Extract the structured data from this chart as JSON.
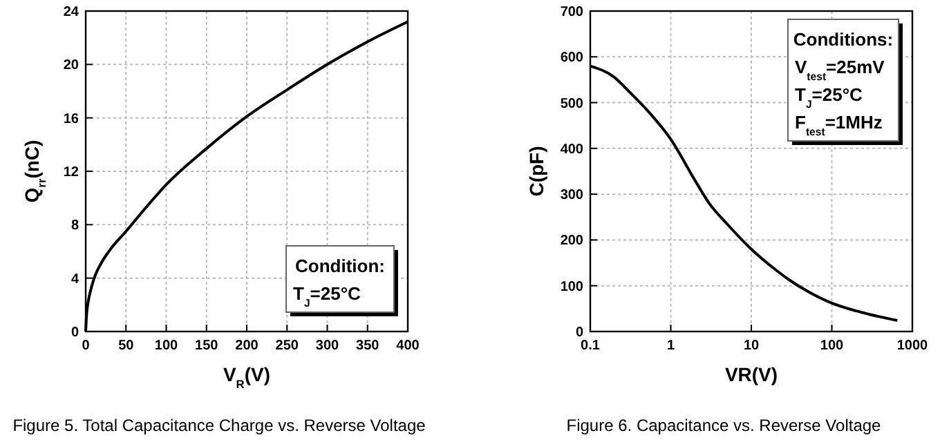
{
  "chart_data": [
    {
      "type": "line",
      "title": "Figure 5. Total Capacitance Charge vs. Reverse Voltage",
      "xlabel": "V$_{R}$(V)",
      "ylabel": "Q$_{rr}$(nC)",
      "annotations": [
        "Condition:",
        "T$_{J}$=25°C"
      ],
      "x": [
        0,
        1,
        3,
        5,
        10,
        20,
        30,
        50,
        75,
        100,
        150,
        200,
        250,
        300,
        350,
        400
      ],
      "series": [
        {
          "color": "#000000",
          "values": [
            0,
            1.2,
            2.2,
            2.8,
            3.9,
            5.2,
            6.1,
            7.5,
            9.3,
            11,
            13.7,
            16.1,
            18.1,
            20,
            21.7,
            23.2
          ]
        }
      ],
      "xlim": [
        0,
        400
      ],
      "xticks": [
        0,
        50,
        100,
        150,
        200,
        250,
        300,
        350,
        400
      ],
      "ylim": [
        0,
        24
      ],
      "yticks": [
        0,
        4,
        8,
        12,
        16,
        20,
        24
      ],
      "grid": true
    },
    {
      "type": "line",
      "title": "Figure 6. Capacitance vs. Reverse Voltage",
      "xlabel": "VR(V)",
      "ylabel": "C(pF)",
      "annotations": [
        "Conditions:",
        "V$_{test}$=25mV",
        "T$_{J}$=25°C",
        "F$_{test}$=1MHz"
      ],
      "x": [
        0.1,
        0.2,
        0.3,
        0.5,
        1,
        2,
        3,
        5,
        10,
        20,
        30,
        50,
        100,
        200,
        300,
        650
      ],
      "series": [
        {
          "color": "#000000",
          "values": [
            580,
            555,
            525,
            485,
            420,
            330,
            280,
            235,
            180,
            135,
            112,
            88,
            62,
            45,
            37,
            24
          ]
        }
      ],
      "xlim": [
        0.1,
        1000
      ],
      "xticks": [
        0.1,
        1,
        10,
        100,
        1000
      ],
      "ylim": [
        0,
        700
      ],
      "yticks": [
        0,
        100,
        200,
        300,
        400,
        500,
        600,
        700
      ],
      "log": "x",
      "grid": true
    }
  ]
}
